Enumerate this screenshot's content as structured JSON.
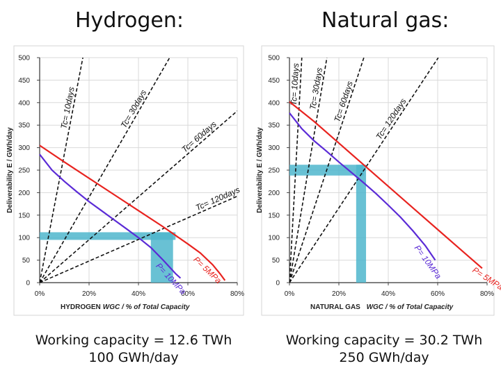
{
  "chart_data": [
    {
      "type": "line",
      "title": "Hydrogen:",
      "caption": [
        "Working capacity = 12.6 TWh",
        "100 GWh/day"
      ],
      "xlabel_prefix": "HYDROGEN",
      "xlabel": "WGC / % of Total Capacity",
      "ylabel": "Deliverability  E  / GWh/day",
      "xlim": [
        0,
        80
      ],
      "ylim": [
        0,
        500
      ],
      "xticks": [
        "0%",
        "20%",
        "40%",
        "60%",
        "80%"
      ],
      "yticks": [
        "0",
        "50",
        "100",
        "150",
        "200",
        "250",
        "300",
        "350",
        "400",
        "450",
        "500"
      ],
      "grid": true,
      "rate_lines": [
        {
          "label": "Tc= 10days",
          "slope": 28.6,
          "label_at": 13.5
        },
        {
          "label": "Tc= 30days",
          "slope": 9.5,
          "label_at": 40
        },
        {
          "label": "Tc= 60days",
          "slope": 4.77,
          "label_at": 66
        },
        {
          "label": "Tc= 120days",
          "slope": 2.4,
          "label_at": 73
        }
      ],
      "series": [
        {
          "name": "P= 5MPa",
          "color": "#e8231f",
          "x": [
            0,
            10,
            20,
            30,
            40,
            50,
            60,
            65,
            70,
            73,
            75
          ],
          "y": [
            305,
            268,
            232,
            196,
            160,
            124,
            86,
            66,
            40,
            20,
            5
          ],
          "label_at": [
            64,
            71
          ]
        },
        {
          "name": "P= 10MPa",
          "color": "#5b2bd6",
          "x": [
            0,
            5,
            10,
            15,
            20,
            25,
            30,
            35,
            40,
            45,
            50,
            55,
            57
          ],
          "y": [
            285,
            250,
            225,
            202,
            180,
            160,
            140,
            120,
            100,
            78,
            50,
            20,
            10
          ],
          "label_at": [
            49,
            52
          ]
        }
      ],
      "highlight": {
        "color": "#4fb6cc",
        "band_y": [
          95,
          112
        ],
        "band_x": [
          0,
          55
        ],
        "col_x": [
          45,
          54
        ],
        "col_y": [
          0,
          112
        ]
      }
    },
    {
      "type": "line",
      "title": "Natural gas:",
      "caption": [
        "Working capacity = 30.2 TWh",
        "250 GWh/day"
      ],
      "xlabel_prefix": "NATURAL GAS",
      "xlabel": "WGC / % of Total Capacity",
      "ylabel": "Deliverability  E  / GWh/day",
      "xlim": [
        0,
        80
      ],
      "ylim": [
        0,
        500
      ],
      "xticks": [
        "0%",
        "20%",
        "40%",
        "60%",
        "80%"
      ],
      "yticks": [
        "0",
        "50",
        "100",
        "150",
        "200",
        "250",
        "300",
        "350",
        "400",
        "450",
        "500"
      ],
      "grid": true,
      "rate_lines": [
        {
          "label": "Tc= 10days",
          "slope": 100,
          "label_at": 4.4
        },
        {
          "label": "Tc= 30days",
          "slope": 33,
          "label_at": 13
        },
        {
          "label": "Tc= 60days",
          "slope": 16.6,
          "label_at": 24
        },
        {
          "label": "Tc= 120days",
          "slope": 8.3,
          "label_at": 43
        }
      ],
      "series": [
        {
          "name": "P= 5MPa",
          "color": "#e8231f",
          "x": [
            0,
            10,
            20,
            30,
            40,
            50,
            60,
            70,
            78
          ],
          "y": [
            402,
            358,
            310,
            262,
            214,
            166,
            118,
            70,
            32
          ],
          "label_at": [
            75,
            79
          ]
        },
        {
          "name": "P= 10MPa",
          "color": "#5b2bd6",
          "x": [
            0,
            5,
            10,
            15,
            20,
            25,
            30,
            35,
            40,
            45,
            50,
            55,
            59
          ],
          "y": [
            377,
            342,
            315,
            292,
            268,
            245,
            222,
            198,
            172,
            145,
            115,
            82,
            50
          ],
          "label_at": [
            53,
            59
          ]
        }
      ],
      "highlight": {
        "color": "#4fb6cc",
        "band_y": [
          238,
          262
        ],
        "band_x": [
          0,
          30
        ],
        "col_x": [
          27,
          31
        ],
        "col_y": [
          0,
          262
        ]
      }
    }
  ]
}
